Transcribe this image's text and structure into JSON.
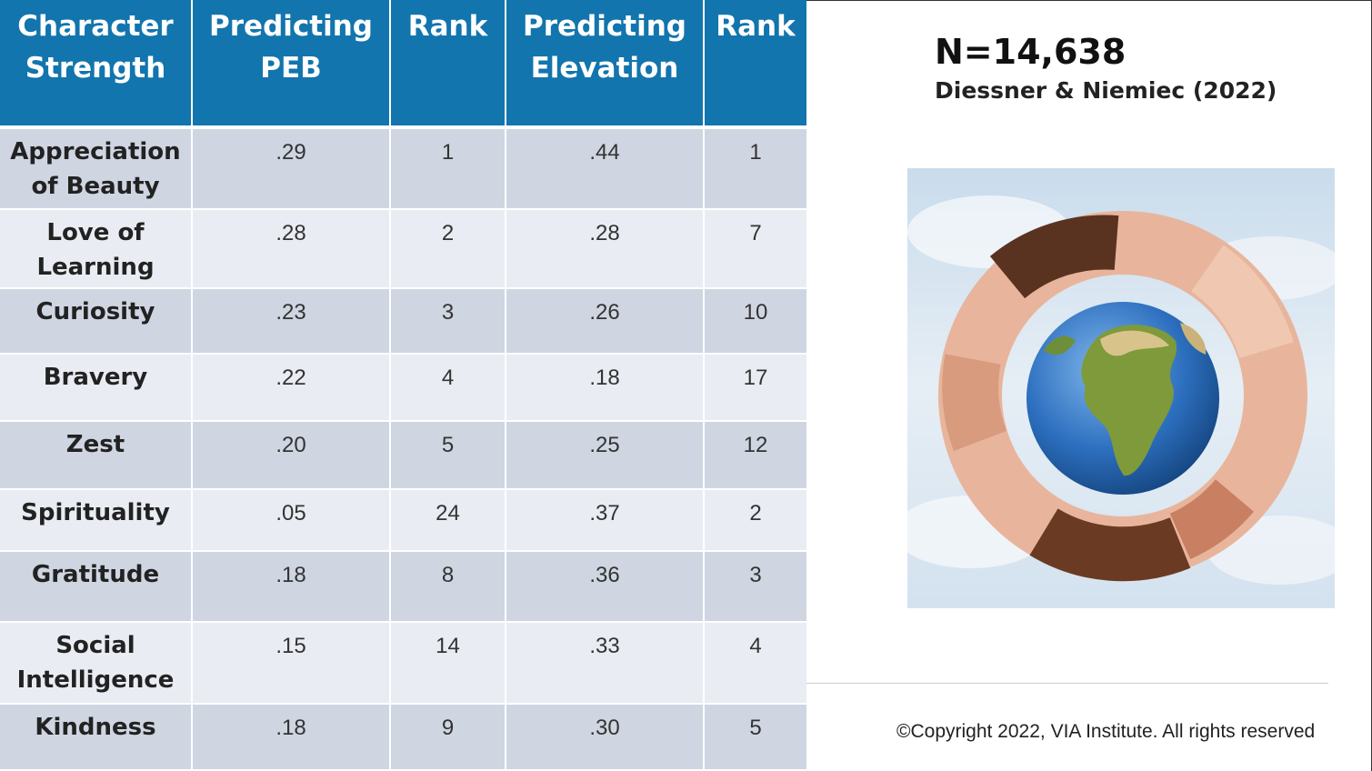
{
  "table": {
    "headers": [
      {
        "line1": "Character",
        "line2": "Strength"
      },
      {
        "line1": "Predicting",
        "line2": "PEB"
      },
      {
        "line1": "Rank",
        "line2": ""
      },
      {
        "line1": "Predicting",
        "line2": "Elevation"
      },
      {
        "line1": "Rank",
        "line2": ""
      }
    ],
    "rows": [
      {
        "name1": "Appreciation",
        "name2": "of Beauty",
        "peb": ".29",
        "peb_rank": "1",
        "elevation": ".44",
        "elevation_rank": "1"
      },
      {
        "name1": "Love of",
        "name2": "Learning",
        "peb": ".28",
        "peb_rank": "2",
        "elevation": ".28",
        "elevation_rank": "7"
      },
      {
        "name1": "Curiosity",
        "name2": "",
        "peb": ".23",
        "peb_rank": "3",
        "elevation": ".26",
        "elevation_rank": "10"
      },
      {
        "name1": "Bravery",
        "name2": "",
        "peb": ".22",
        "peb_rank": "4",
        "elevation": ".18",
        "elevation_rank": "17"
      },
      {
        "name1": "Zest",
        "name2": "",
        "peb": ".20",
        "peb_rank": "5",
        "elevation": ".25",
        "elevation_rank": "12"
      },
      {
        "name1": "Spirituality",
        "name2": "",
        "peb": ".05",
        "peb_rank": "24",
        "elevation": ".37",
        "elevation_rank": "2"
      },
      {
        "name1": "Gratitude",
        "name2": "",
        "peb": ".18",
        "peb_rank": "8",
        "elevation": ".36",
        "elevation_rank": "3"
      },
      {
        "name1": "Social",
        "name2": "Intelligence",
        "peb": ".15",
        "peb_rank": "14",
        "elevation": ".33",
        "elevation_rank": "4"
      },
      {
        "name1": "Kindness",
        "name2": "",
        "peb": ".18",
        "peb_rank": "9",
        "elevation": ".30",
        "elevation_rank": "5"
      }
    ]
  },
  "sample_size": "N=14,638",
  "citation": "Diessner & Niemiec (2022)",
  "image_icon": "hands-around-globe-icon",
  "copyright": "©Copyright 2022, VIA Institute. All rights reserved",
  "colors": {
    "header_bg": "#1275ad",
    "row_odd": "#cfd6e2",
    "row_even": "#e9ecf2"
  }
}
